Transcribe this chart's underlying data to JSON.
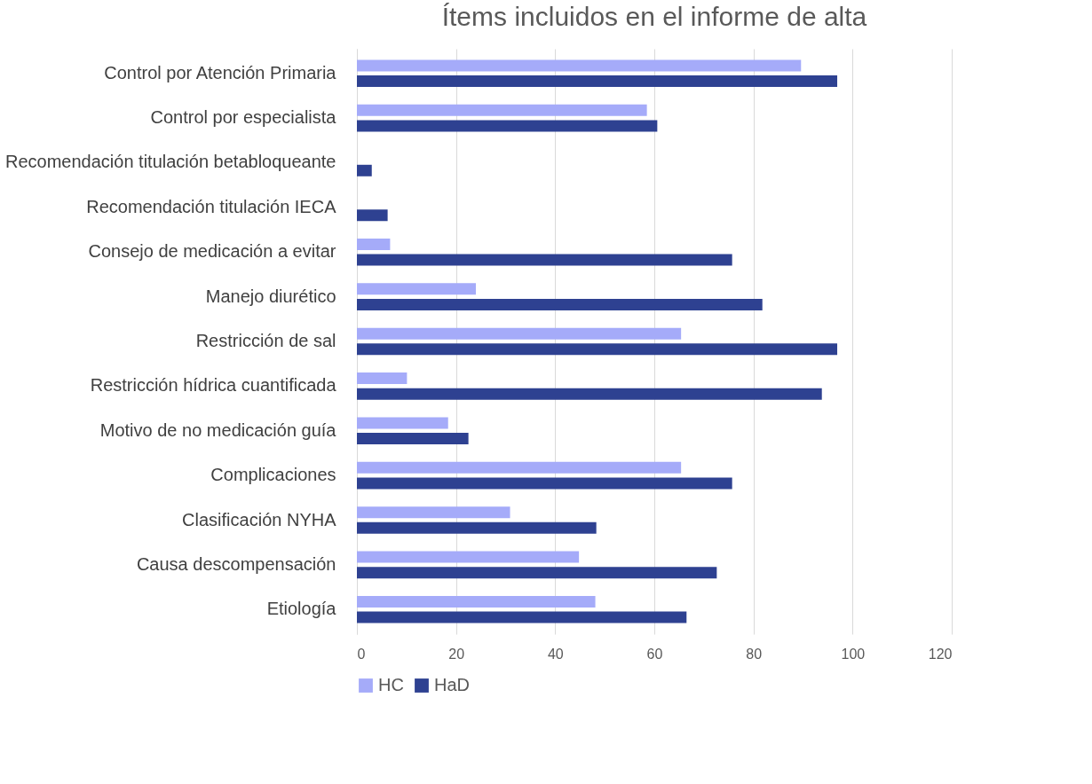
{
  "chart_data": {
    "type": "bar",
    "orientation": "horizontal",
    "title": "Ítems incluidos en el informe de alta",
    "categories": [
      "Control por Atención Primaria",
      "Control por especialista",
      "Recomendación titulación betabloqueante",
      "Recomendación titulación IECA",
      "Consejo de medicación a evitar",
      "Manejo diurético",
      "Restricción de sal",
      "Restricción hídrica cuantificada",
      "Motivo de no medicación guía",
      "Complicaciones",
      "Clasificación NYHA",
      "Causa descompensación",
      "Etiología"
    ],
    "series": [
      {
        "name": "HC",
        "color": "#a5abf9",
        "values": [
          89.6,
          58.5,
          0,
          0,
          6.7,
          24.0,
          65.4,
          10.1,
          18.4,
          65.4,
          30.9,
          44.8,
          48.1
        ]
      },
      {
        "name": "HaD",
        "color": "#2e4191",
        "values": [
          96.9,
          60.6,
          3.0,
          6.2,
          75.7,
          81.8,
          96.9,
          93.8,
          22.5,
          75.7,
          48.3,
          72.6,
          66.5
        ]
      }
    ],
    "xlim": [
      0,
      120
    ],
    "xticks": [
      0,
      20,
      40,
      60,
      80,
      100,
      120
    ],
    "grid": "x",
    "legend": "bottom"
  }
}
